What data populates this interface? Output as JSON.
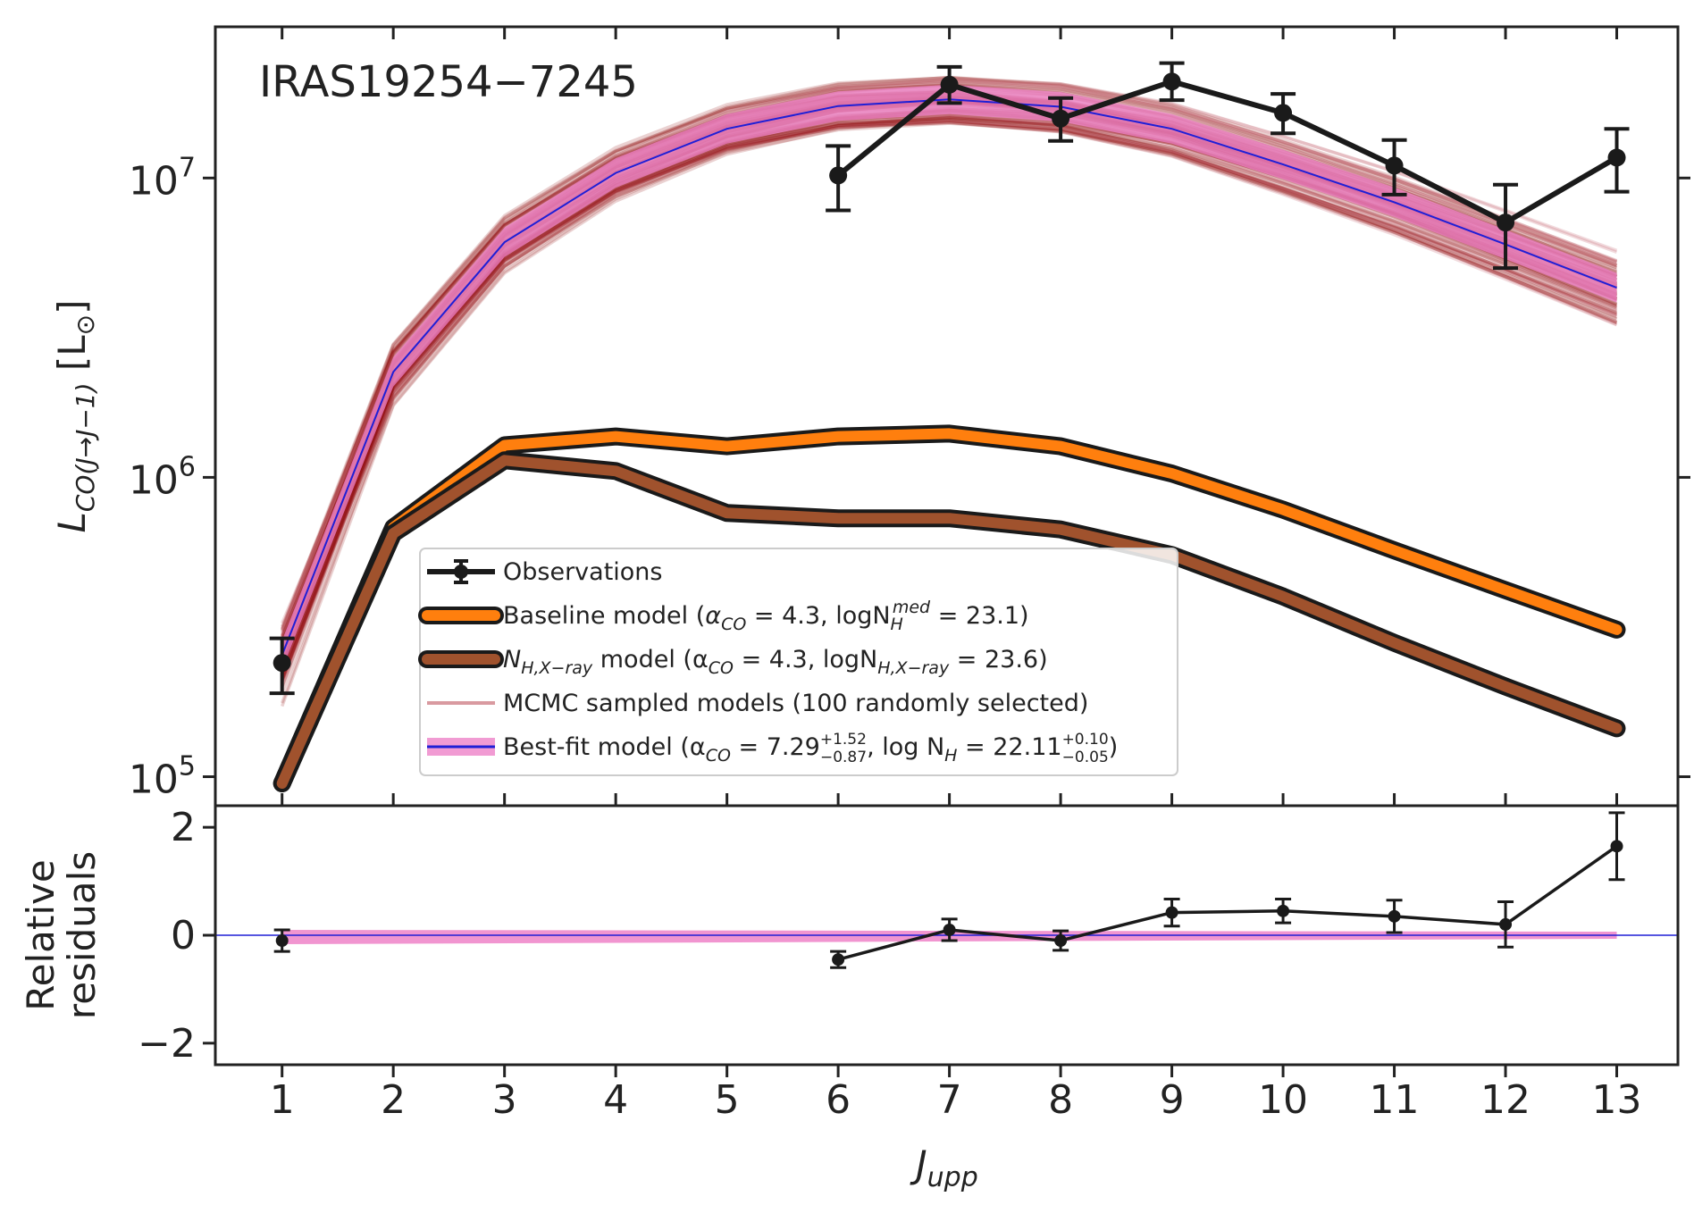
{
  "chart_data": [
    {
      "type": "line",
      "title": "IRAS19254−7245",
      "ylabel": "L_CO(J→J−1) [L⊙]",
      "xlabel": "J_upp",
      "yscale": "log",
      "ylim": [
        80000,
        32000000
      ],
      "xlim": [
        0.4,
        13.55
      ],
      "x": [
        1,
        2,
        3,
        4,
        5,
        6,
        7,
        8,
        9,
        10,
        11,
        12,
        13
      ],
      "yticks": [
        {
          "value": 100000,
          "base": "10",
          "exp": "5"
        },
        {
          "value": 1000000,
          "base": "10",
          "exp": "6"
        },
        {
          "value": 10000000,
          "base": "10",
          "exp": "7"
        }
      ],
      "series": [
        {
          "name": "Observations",
          "x": [
            1,
            6,
            7,
            8,
            9,
            10,
            11,
            12,
            13
          ],
          "values": [
            240000,
            10200000,
            20500000,
            15800000,
            21000000,
            16500000,
            11000000,
            7100000,
            11700000
          ],
          "err_low": [
            50000,
            2400000,
            2700000,
            2500000,
            2800000,
            2400000,
            2200000,
            2100000,
            2700000
          ],
          "err_high": [
            50000,
            2600000,
            3000000,
            2700000,
            3200000,
            2600000,
            2400000,
            2400000,
            2900000
          ]
        },
        {
          "name": "Baseline model (αCO = 4.3, logN_H^med = 23.1)",
          "x": [
            1,
            2,
            3,
            4,
            5,
            6,
            7,
            8,
            9,
            10,
            11,
            12,
            13
          ],
          "values": [
            95000,
            680000,
            1280000,
            1370000,
            1270000,
            1370000,
            1400000,
            1270000,
            1030000,
            780000,
            570000,
            420000,
            310000
          ]
        },
        {
          "name": "N_H,X-ray model (αCO = 4.3, logN_H,X-ray = 23.6)",
          "x": [
            1,
            2,
            3,
            4,
            5,
            6,
            7,
            8,
            9,
            10,
            11,
            12,
            13
          ],
          "values": [
            95000,
            650000,
            1140000,
            1050000,
            760000,
            730000,
            730000,
            670000,
            550000,
            400000,
            280000,
            200000,
            145000
          ]
        },
        {
          "name": "Best-fit model",
          "x": [
            1,
            2,
            3,
            4,
            5,
            6,
            7,
            8,
            9,
            10,
            11,
            12,
            13
          ],
          "values": [
            255000,
            2250000,
            6100000,
            10400000,
            14600000,
            17400000,
            18300000,
            17300000,
            14600000,
            11100000,
            8300000,
            6000000,
            4300000
          ]
        }
      ],
      "legend": [
        {
          "label": "Observations",
          "style": "obs"
        },
        {
          "label_main": "Baseline model (",
          "label_math": "α",
          "label_sub": "CO",
          "label_rest": " = 4.3, logN",
          "label_sub2": "H",
          "label_sup2": "med",
          "label_end": " = 23.1)",
          "style": "baseline"
        },
        {
          "label_main": "N",
          "label_sub": "H,X−ray",
          "label_rest": " model (α",
          "label_sub2": "CO",
          "label_mid": " = 4.3, logN",
          "label_sub3": "H,X−ray",
          "label_end": " = 23.6)",
          "style": "xray"
        },
        {
          "label": "MCMC sampled models (100 randomly selected)",
          "style": "mcmc"
        },
        {
          "label_main": "Best-fit model (α",
          "label_sub": "CO",
          "label_rest": " = 7.29",
          "label_sup": "+1.52",
          "label_subv": "−0.87",
          "label_mid": ", log N",
          "label_sub2": "H",
          "label_rest2": " = 22.11",
          "label_sup2": "+0.10",
          "label_subv2": "−0.05",
          "label_end": ")",
          "style": "bestfit"
        }
      ],
      "legend_position": "lower-center",
      "annotation": "IRAS19254−7245"
    },
    {
      "type": "scatter",
      "ylabel_line1": "Relative",
      "ylabel_line2": "residuals",
      "ylim": [
        -2.4,
        2.4
      ],
      "yticks": [
        "2",
        "0",
        "−2"
      ],
      "ytick_values": [
        2,
        0,
        -2
      ],
      "xticks": [
        "1",
        "2",
        "3",
        "4",
        "5",
        "6",
        "7",
        "8",
        "9",
        "10",
        "11",
        "12",
        "13"
      ],
      "x": [
        1,
        6,
        7,
        8,
        9,
        10,
        11,
        12,
        13
      ],
      "values": [
        -0.1,
        -0.45,
        0.1,
        -0.1,
        0.42,
        0.45,
        0.35,
        0.2,
        1.65
      ],
      "err": [
        0.2,
        0.15,
        0.2,
        0.18,
        0.25,
        0.22,
        0.3,
        0.42,
        0.62
      ]
    }
  ],
  "colors": {
    "observations": "#1a1a1a",
    "baseline": "#ff7f0e",
    "xray": "#a0522d",
    "mcmc": "#8b0000",
    "bestfit_band": "#ee82c8",
    "bestfit_line": "#1f1fd6"
  }
}
